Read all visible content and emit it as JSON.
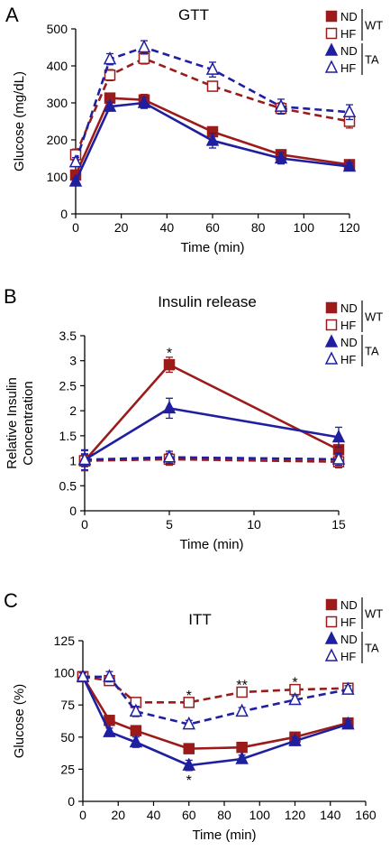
{
  "colors": {
    "wt": "#9b1b1b",
    "ta": "#1f1fa0"
  },
  "legend": {
    "entries": [
      {
        "label": "ND",
        "marker": "square-filled",
        "group": "wt"
      },
      {
        "label": "HF",
        "marker": "square-open",
        "group": "wt"
      },
      {
        "label": "ND",
        "marker": "triangle-filled",
        "group": "ta"
      },
      {
        "label": "HF",
        "marker": "triangle-open",
        "group": "ta"
      }
    ],
    "groups": [
      {
        "label": "WT"
      },
      {
        "label": "TA"
      }
    ]
  },
  "chart_data": [
    {
      "type": "line",
      "panel_letter": "A",
      "title": "GTT",
      "xlabel": "Time (min)",
      "ylabel": "Glucose (mg/dL)",
      "xlim": [
        0,
        120
      ],
      "ylim": [
        0,
        500
      ],
      "xticks": [
        0,
        20,
        40,
        60,
        80,
        100,
        120
      ],
      "yticks": [
        0,
        100,
        200,
        300,
        400,
        500
      ],
      "legend_position": "top-right",
      "x": [
        0,
        15,
        30,
        60,
        90,
        120
      ],
      "series": [
        {
          "name": "WT ND",
          "values": [
            105,
            313,
            308,
            222,
            160,
            133
          ],
          "errors": [
            10,
            12,
            15,
            12,
            10,
            10
          ],
          "color": "wt",
          "marker": "square-filled",
          "dash": false
        },
        {
          "name": "WT HF",
          "values": [
            160,
            375,
            420,
            345,
            285,
            250
          ],
          "errors": [
            15,
            15,
            15,
            12,
            15,
            18
          ],
          "color": "wt",
          "marker": "square-open",
          "dash": true
        },
        {
          "name": "TA ND",
          "values": [
            88,
            290,
            300,
            198,
            150,
            128
          ],
          "errors": [
            8,
            12,
            15,
            20,
            15,
            10
          ],
          "color": "ta",
          "marker": "triangle-filled",
          "dash": false
        },
        {
          "name": "TA HF",
          "values": [
            140,
            418,
            450,
            390,
            290,
            275
          ],
          "errors": [
            12,
            15,
            18,
            20,
            20,
            20
          ],
          "color": "ta",
          "marker": "triangle-open",
          "dash": true
        }
      ]
    },
    {
      "type": "line",
      "panel_letter": "B",
      "title": "Insulin release",
      "xlabel": "Time (min)",
      "ylabel": "Relative Insulin Concentration",
      "ylabel_lines": [
        "Relative Insulin",
        "Concentration"
      ],
      "xlim": [
        0,
        15
      ],
      "ylim": [
        0,
        3.5
      ],
      "xticks": [
        0,
        5,
        10,
        15
      ],
      "yticks": [
        0,
        0.5,
        1,
        1.5,
        2,
        2.5,
        3,
        3.5
      ],
      "legend_position": "top-right",
      "x": [
        0,
        5,
        15
      ],
      "series": [
        {
          "name": "WT ND",
          "values": [
            1.0,
            2.92,
            1.22
          ],
          "errors": [
            0.2,
            0.15,
            0.2
          ],
          "color": "wt",
          "marker": "square-filled",
          "dash": false
        },
        {
          "name": "WT HF",
          "values": [
            1.0,
            1.03,
            0.98
          ],
          "errors": [
            0.12,
            0.12,
            0.12
          ],
          "color": "wt",
          "marker": "square-open",
          "dash": true
        },
        {
          "name": "TA ND",
          "values": [
            1.02,
            2.05,
            1.47
          ],
          "errors": [
            0.2,
            0.2,
            0.2
          ],
          "color": "ta",
          "marker": "triangle-filled",
          "dash": false
        },
        {
          "name": "TA HF",
          "values": [
            1.02,
            1.07,
            1.03
          ],
          "errors": [
            0.12,
            0.12,
            0.12
          ],
          "color": "ta",
          "marker": "triangle-open",
          "dash": true
        }
      ],
      "annotations": [
        {
          "text": "*",
          "x": 5,
          "y": 3.17
        }
      ]
    },
    {
      "type": "line",
      "panel_letter": "C",
      "title": "ITT",
      "xlabel": "Time (min)",
      "ylabel": "Glucose (%)",
      "xlim": [
        0,
        160
      ],
      "ylim": [
        0,
        125
      ],
      "xticks": [
        0,
        20,
        40,
        60,
        80,
        100,
        120,
        140,
        160
      ],
      "yticks": [
        0,
        25,
        50,
        75,
        100,
        125
      ],
      "legend_position": "top-right",
      "x": [
        0,
        15,
        30,
        60,
        90,
        120,
        150
      ],
      "series": [
        {
          "name": "WT ND",
          "values": [
            97,
            63,
            55,
            41,
            42,
            50,
            61
          ],
          "errors": [
            3,
            3,
            3,
            3,
            3,
            3,
            3
          ],
          "color": "wt",
          "marker": "square-filled",
          "dash": false
        },
        {
          "name": "WT HF",
          "values": [
            97,
            94,
            77,
            77,
            85,
            87,
            88
          ],
          "errors": [
            3,
            3,
            3,
            3,
            3,
            3,
            3
          ],
          "color": "wt",
          "marker": "square-open",
          "dash": true
        },
        {
          "name": "TA ND",
          "values": [
            97,
            54,
            46,
            28,
            33,
            47,
            60
          ],
          "errors": [
            3,
            3,
            4,
            4,
            3,
            3,
            3
          ],
          "color": "ta",
          "marker": "triangle-filled",
          "dash": false
        },
        {
          "name": "TA HF",
          "values": [
            97,
            97,
            70,
            60,
            70,
            79,
            87
          ],
          "errors": [
            3,
            4,
            4,
            3,
            3,
            3,
            3
          ],
          "color": "ta",
          "marker": "triangle-open",
          "dash": true
        }
      ],
      "annotations": [
        {
          "text": "*",
          "x": 60,
          "y": 83
        },
        {
          "text": "**",
          "x": 90,
          "y": 91
        },
        {
          "text": "*",
          "x": 120,
          "y": 93
        },
        {
          "text": "*",
          "x": 60,
          "y": 17
        }
      ]
    }
  ]
}
